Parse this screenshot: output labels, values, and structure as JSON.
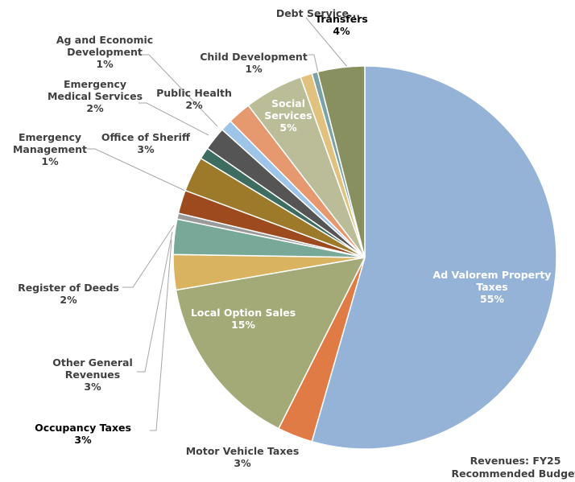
{
  "chart_data": {
    "type": "pie",
    "title": "Revenues: FY25 Recommended Budget",
    "categories": [
      "Ad Valorem Property Taxes",
      "Motor Vehicle Taxes",
      "Local Option Sales",
      "Occupancy Taxes",
      "Other General Revenues",
      null,
      "Register of Deeds",
      "Office of Sheriff",
      "Emergency Management",
      "Emergency Medical Services",
      "Ag and Economic Development",
      "Public Health",
      "Social Services",
      "Child Development",
      "Debt Service...",
      "Transfers"
    ],
    "values": [
      55,
      3,
      15,
      3,
      3,
      0.5,
      2,
      3,
      1,
      2,
      1,
      2,
      5,
      1,
      0.5,
      4
    ],
    "value_labels": [
      "55%",
      "3%",
      "15%",
      "3%",
      "3%",
      null,
      "2%",
      "3%",
      "1%",
      "2%",
      "1%",
      "2%",
      "5%",
      "1%",
      null,
      "4%"
    ],
    "colors": [
      "#95b3d7",
      "#e07b45",
      "#a3aa78",
      "#d9b35f",
      "#77a898",
      "#9a9a9a",
      "#9c4a1e",
      "#9c7a2a",
      "#3d6c61",
      "#555555",
      "#9ec5e8",
      "#e6986e",
      "#bbbd99",
      "#e0c27e",
      "#7aa3a8",
      "#89905f"
    ]
  }
}
